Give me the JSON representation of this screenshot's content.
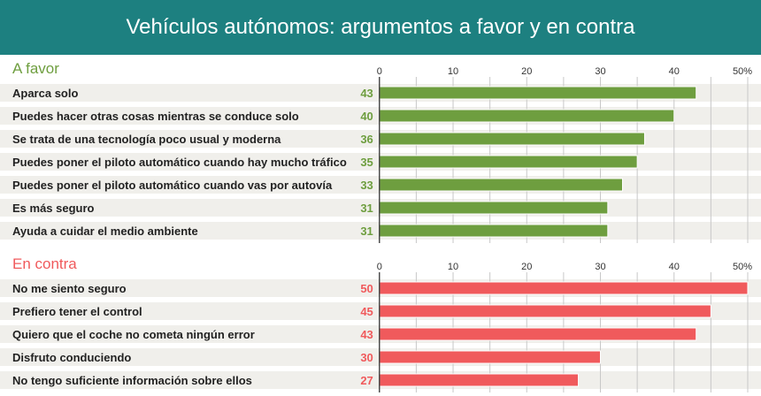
{
  "title": "Vehículos autónomos: argumentos a favor y en contra",
  "colors": {
    "header": "#1d8080",
    "favor": "#6e9e3f",
    "contra": "#f05a5c",
    "band": "#f0efeb"
  },
  "chart_data": [
    {
      "type": "bar",
      "orientation": "horizontal",
      "title": "A favor",
      "xlim": [
        0,
        50
      ],
      "ticks": [
        "0",
        "10",
        "20",
        "30",
        "40",
        "50%"
      ],
      "grid": true,
      "categories": [
        "Aparca solo",
        "Puedes hacer otras cosas mientras se conduce solo",
        "Se trata de una tecnología poco usual y moderna",
        "Puedes poner el piloto automático cuando hay mucho tráfico",
        "Puedes poner el piloto automático cuando vas por autovía",
        "Es más seguro",
        "Ayuda a cuidar el medio ambiente"
      ],
      "values": [
        43,
        40,
        36,
        35,
        33,
        31,
        31
      ]
    },
    {
      "type": "bar",
      "orientation": "horizontal",
      "title": "En contra",
      "xlim": [
        0,
        50
      ],
      "ticks": [
        "0",
        "10",
        "20",
        "30",
        "40",
        "50%"
      ],
      "grid": true,
      "categories": [
        "No me siento seguro",
        "Prefiero tener el control",
        "Quiero que el coche no cometa ningún error",
        "Disfruto conduciendo",
        "No tengo suficiente información sobre ellos"
      ],
      "values": [
        50,
        45,
        43,
        30,
        27
      ]
    }
  ]
}
